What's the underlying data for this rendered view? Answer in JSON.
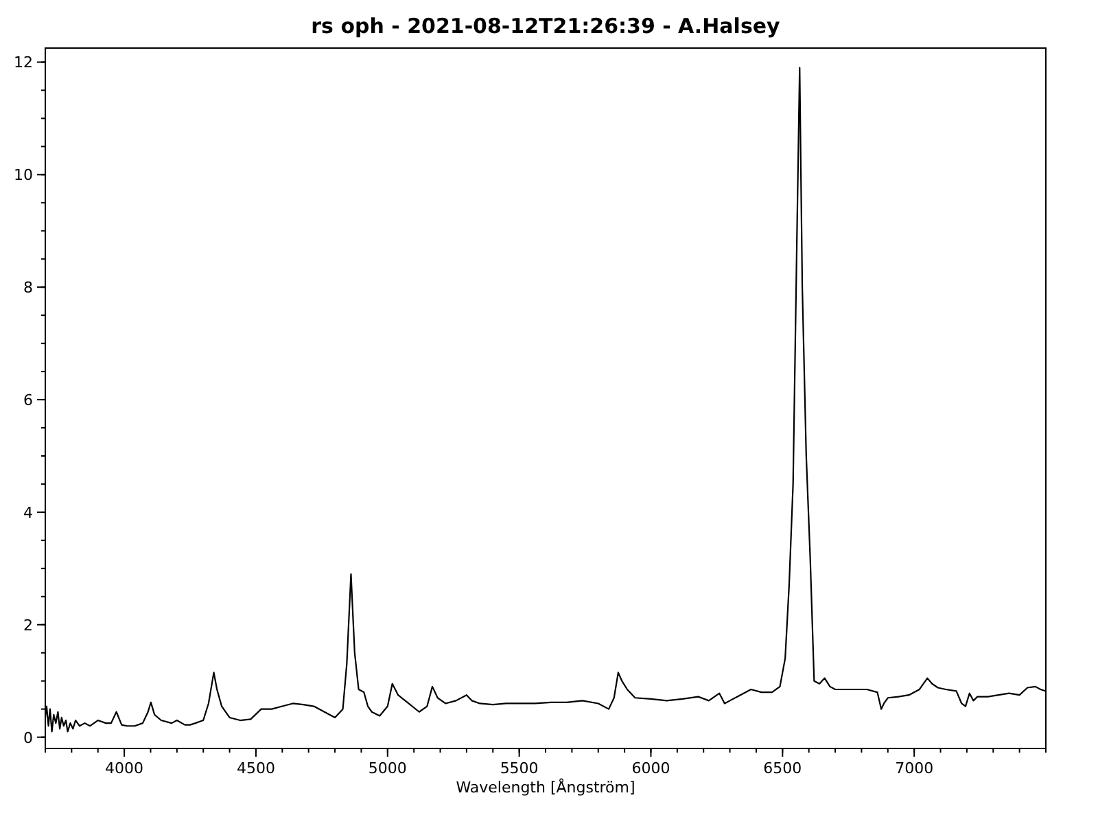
{
  "chart_data": {
    "type": "line",
    "title": "rs oph - 2021-08-12T21:26:39 - A.Halsey",
    "xlabel": "Wavelength [Ångström]",
    "xlim": [
      3700,
      7500
    ],
    "ylim": [
      -0.2,
      12.25
    ],
    "xticks": [
      4000,
      4500,
      5000,
      5500,
      6000,
      6500,
      7000
    ],
    "yticks": [
      0,
      2,
      4,
      6,
      8,
      10,
      12
    ],
    "marker": "none",
    "line_style": "solid",
    "grid": false,
    "series": [
      {
        "color": "#000000",
        "x": [
          3700,
          3705,
          3712,
          3718,
          3725,
          3732,
          3740,
          3748,
          3755,
          3762,
          3770,
          3778,
          3785,
          3795,
          3805,
          3815,
          3830,
          3850,
          3870,
          3900,
          3930,
          3950,
          3970,
          3990,
          4010,
          4040,
          4070,
          4090,
          4101,
          4115,
          4140,
          4180,
          4200,
          4230,
          4250,
          4270,
          4300,
          4320,
          4340,
          4352,
          4370,
          4400,
          4440,
          4480,
          4520,
          4560,
          4600,
          4640,
          4680,
          4720,
          4760,
          4800,
          4830,
          4845,
          4861,
          4875,
          4890,
          4910,
          4925,
          4940,
          4970,
          5000,
          5018,
          5040,
          5080,
          5120,
          5150,
          5170,
          5190,
          5220,
          5260,
          5300,
          5320,
          5350,
          5400,
          5450,
          5500,
          5560,
          5620,
          5680,
          5740,
          5800,
          5840,
          5860,
          5876,
          5890,
          5910,
          5940,
          6000,
          6060,
          6120,
          6180,
          6220,
          6260,
          6280,
          6300,
          6340,
          6380,
          6420,
          6460,
          6490,
          6510,
          6525,
          6540,
          6555,
          6565,
          6575,
          6590,
          6605,
          6620,
          6640,
          6660,
          6680,
          6700,
          6760,
          6820,
          6860,
          6875,
          6885,
          6900,
          6940,
          6980,
          7020,
          7050,
          7068,
          7090,
          7120,
          7160,
          7180,
          7195,
          7210,
          7225,
          7240,
          7280,
          7320,
          7360,
          7400,
          7430,
          7460,
          7480,
          7500
        ],
        "values": [
          0.35,
          0.55,
          0.2,
          0.5,
          0.1,
          0.4,
          0.25,
          0.45,
          0.15,
          0.35,
          0.2,
          0.3,
          0.1,
          0.25,
          0.15,
          0.3,
          0.2,
          0.25,
          0.2,
          0.3,
          0.25,
          0.25,
          0.45,
          0.22,
          0.2,
          0.2,
          0.25,
          0.45,
          0.62,
          0.4,
          0.3,
          0.25,
          0.3,
          0.22,
          0.22,
          0.25,
          0.3,
          0.6,
          1.15,
          0.85,
          0.55,
          0.35,
          0.3,
          0.32,
          0.5,
          0.5,
          0.55,
          0.6,
          0.58,
          0.55,
          0.45,
          0.35,
          0.5,
          1.3,
          2.9,
          1.5,
          0.85,
          0.8,
          0.55,
          0.45,
          0.38,
          0.55,
          0.95,
          0.75,
          0.6,
          0.45,
          0.55,
          0.9,
          0.7,
          0.6,
          0.65,
          0.75,
          0.65,
          0.6,
          0.58,
          0.6,
          0.6,
          0.6,
          0.62,
          0.62,
          0.65,
          0.6,
          0.5,
          0.7,
          1.15,
          1.0,
          0.85,
          0.7,
          0.68,
          0.65,
          0.68,
          0.72,
          0.65,
          0.78,
          0.6,
          0.65,
          0.75,
          0.85,
          0.8,
          0.8,
          0.9,
          1.4,
          2.7,
          4.5,
          9.0,
          11.9,
          8.0,
          5.0,
          3.2,
          1.0,
          0.95,
          1.05,
          0.9,
          0.85,
          0.85,
          0.85,
          0.8,
          0.5,
          0.6,
          0.7,
          0.72,
          0.75,
          0.85,
          1.05,
          0.95,
          0.88,
          0.85,
          0.82,
          0.6,
          0.55,
          0.78,
          0.65,
          0.72,
          0.72,
          0.75,
          0.78,
          0.75,
          0.88,
          0.9,
          0.85,
          0.82
        ]
      }
    ]
  }
}
